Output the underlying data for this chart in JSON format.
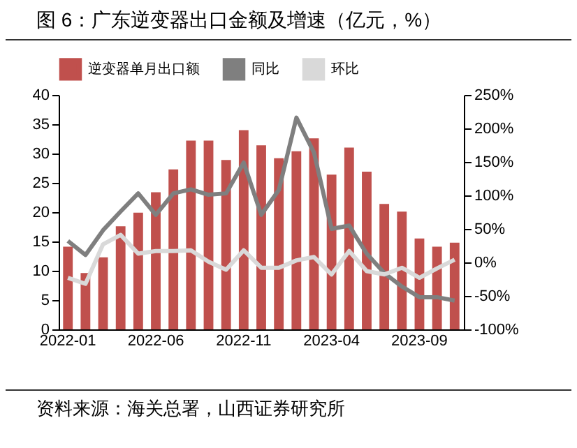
{
  "chart_data": {
    "type": "bar",
    "title": "图 6：广东逆变器出口金额及增速（亿元，%）",
    "annotations": [
      "资料来源：海关总署，山西证券研究所"
    ],
    "categories": [
      "2022-01",
      null,
      null,
      null,
      null,
      "2022-06",
      null,
      null,
      null,
      null,
      "2022-11",
      null,
      null,
      null,
      null,
      "2023-04",
      null,
      null,
      null,
      null,
      "2023-09",
      null,
      null
    ],
    "series": [
      {
        "name": "逆变器单月出口额",
        "color": "#c0504d",
        "values": [
          14.1,
          9.6,
          12.3,
          17.6,
          19.9,
          23.4,
          27.3,
          32.2,
          32.2,
          28.9,
          34.0,
          31.4,
          29.2,
          30.4,
          32.6,
          26.4,
          31.0,
          26.9,
          21.4,
          20.1,
          15.5,
          14.1,
          14.8
        ]
      },
      {
        "name": "同比",
        "type": "line",
        "axis": "y2",
        "color": "#7f7f7f",
        "values": [
          32,
          11,
          48,
          76,
          103,
          71,
          103,
          109,
          101,
          103,
          149,
          71,
          108,
          216,
          164,
          50,
          55,
          13,
          -16,
          -36,
          -52,
          -52,
          -57
        ]
      },
      {
        "name": "环比",
        "type": "line",
        "axis": "y2",
        "color": "#d9d9d9",
        "values": [
          -23,
          -32,
          27,
          41,
          13,
          17,
          17,
          18,
          1,
          -11,
          18,
          -8,
          -8,
          3,
          8,
          -18,
          17,
          -13,
          -18,
          -8,
          -23,
          -9,
          4
        ]
      }
    ],
    "ylim": [
      0,
      40
    ],
    "yticks": [
      0,
      5,
      10,
      15,
      20,
      25,
      30,
      35,
      40
    ],
    "y2lim": [
      -100,
      250
    ],
    "y2ticks": [
      {
        "value": -100,
        "label": "-100%"
      },
      {
        "value": -50,
        "label": "-50%"
      },
      {
        "value": 0,
        "label": "0%"
      },
      {
        "value": 50,
        "label": "50%"
      },
      {
        "value": 100,
        "label": "100%"
      },
      {
        "value": 150,
        "label": "150%"
      },
      {
        "value": 200,
        "label": "200%"
      },
      {
        "value": 250,
        "label": "250%"
      }
    ],
    "grid": false,
    "legend": "top"
  }
}
